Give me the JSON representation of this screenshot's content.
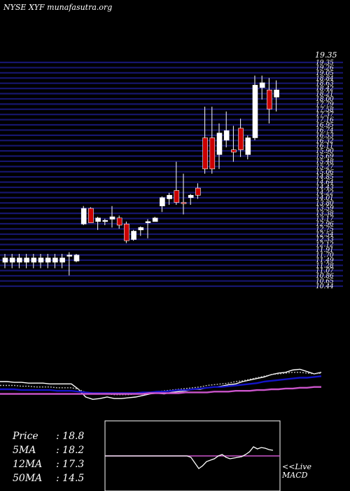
{
  "header": {
    "title": "NYSE XYF munafasutra.org"
  },
  "chart_data": {
    "type": "candlestick",
    "price_axis": {
      "ylim": [
        10.0,
        19.35
      ],
      "top_label": "19.35",
      "tick_labels": [
        "19.35",
        "19.26",
        "19.05",
        "18.84",
        "18.63",
        "18.42",
        "18.21",
        "18.00",
        "17.79",
        "17.58",
        "17.37",
        "17.16",
        "16.95",
        "16.74",
        "16.53",
        "16.32",
        "16.11",
        "15.90",
        "15.69",
        "15.48",
        "15.27",
        "15.06",
        "14.85",
        "14.64",
        "14.43",
        "14.22",
        "14.01",
        "13.80",
        "13.59",
        "13.38",
        "13.17",
        "12.96",
        "12.75",
        "12.54",
        "12.33",
        "12.12",
        "11.91",
        "11.70",
        "11.49",
        "11.28",
        "11.07",
        "10.86",
        "10.65",
        "10.44"
      ],
      "grid": true
    },
    "candles": [
      {
        "o": 11.0,
        "h": 11.35,
        "l": 10.75,
        "c": 11.18,
        "color": "white"
      },
      {
        "o": 11.0,
        "h": 11.35,
        "l": 10.75,
        "c": 11.18,
        "color": "white"
      },
      {
        "o": 11.0,
        "h": 11.35,
        "l": 10.75,
        "c": 11.18,
        "color": "white"
      },
      {
        "o": 11.0,
        "h": 11.35,
        "l": 10.75,
        "c": 11.18,
        "color": "white"
      },
      {
        "o": 11.0,
        "h": 11.35,
        "l": 10.75,
        "c": 11.18,
        "color": "white"
      },
      {
        "o": 11.0,
        "h": 11.35,
        "l": 10.75,
        "c": 11.18,
        "color": "white"
      },
      {
        "o": 11.0,
        "h": 11.35,
        "l": 10.75,
        "c": 11.18,
        "color": "white"
      },
      {
        "o": 11.0,
        "h": 11.35,
        "l": 10.75,
        "c": 11.18,
        "color": "white"
      },
      {
        "o": 11.0,
        "h": 11.35,
        "l": 10.75,
        "c": 11.18,
        "color": "white"
      },
      {
        "o": 11.25,
        "h": 11.42,
        "l": 10.45,
        "c": 11.3,
        "color": "white"
      },
      {
        "o": 11.05,
        "h": 11.35,
        "l": 11.0,
        "c": 11.3,
        "color": "white"
      },
      {
        "o": 12.6,
        "h": 13.35,
        "l": 12.55,
        "c": 13.25,
        "color": "white"
      },
      {
        "o": 13.25,
        "h": 13.3,
        "l": 12.65,
        "c": 12.65,
        "color": "red"
      },
      {
        "o": 12.7,
        "h": 12.9,
        "l": 12.35,
        "c": 12.85,
        "color": "white"
      },
      {
        "o": 12.7,
        "h": 12.82,
        "l": 12.55,
        "c": 12.75,
        "color": "white"
      },
      {
        "o": 12.8,
        "h": 13.35,
        "l": 12.45,
        "c": 12.9,
        "color": "white"
      },
      {
        "o": 12.85,
        "h": 12.95,
        "l": 12.4,
        "c": 12.55,
        "color": "red"
      },
      {
        "o": 12.6,
        "h": 12.7,
        "l": 11.8,
        "c": 11.9,
        "color": "red"
      },
      {
        "o": 11.95,
        "h": 12.35,
        "l": 11.9,
        "c": 12.3,
        "color": "white"
      },
      {
        "o": 12.35,
        "h": 12.5,
        "l": 12.1,
        "c": 12.45,
        "color": "white"
      },
      {
        "o": 12.65,
        "h": 12.8,
        "l": 12.0,
        "c": 12.7,
        "color": "white"
      },
      {
        "o": 12.7,
        "h": 12.9,
        "l": 12.7,
        "c": 12.85,
        "color": "white"
      },
      {
        "o": 13.35,
        "h": 13.75,
        "l": 13.1,
        "c": 13.7,
        "color": "white"
      },
      {
        "o": 13.65,
        "h": 13.9,
        "l": 13.4,
        "c": 13.8,
        "color": "white"
      },
      {
        "o": 14.0,
        "h": 15.2,
        "l": 13.4,
        "c": 13.5,
        "color": "red"
      },
      {
        "o": 13.45,
        "h": 14.7,
        "l": 13.0,
        "c": 13.5,
        "color": "red"
      },
      {
        "o": 13.7,
        "h": 13.85,
        "l": 13.4,
        "c": 13.8,
        "color": "white"
      },
      {
        "o": 14.1,
        "h": 14.3,
        "l": 13.65,
        "c": 13.8,
        "color": "red"
      },
      {
        "o": 16.2,
        "h": 17.5,
        "l": 14.7,
        "c": 14.9,
        "color": "red"
      },
      {
        "o": 16.2,
        "h": 17.5,
        "l": 14.7,
        "c": 14.9,
        "color": "red"
      },
      {
        "o": 15.5,
        "h": 16.8,
        "l": 14.9,
        "c": 16.4,
        "color": "white"
      },
      {
        "o": 16.1,
        "h": 17.3,
        "l": 15.8,
        "c": 16.5,
        "color": "white"
      },
      {
        "o": 15.6,
        "h": 16.7,
        "l": 15.2,
        "c": 15.7,
        "color": "red"
      },
      {
        "o": 16.6,
        "h": 17.0,
        "l": 15.4,
        "c": 15.7,
        "color": "red"
      },
      {
        "o": 15.5,
        "h": 16.3,
        "l": 15.3,
        "c": 16.2,
        "color": "white"
      },
      {
        "o": 16.2,
        "h": 18.8,
        "l": 16.1,
        "c": 18.4,
        "color": "white"
      },
      {
        "o": 18.3,
        "h": 18.8,
        "l": 17.8,
        "c": 18.5,
        "color": "white"
      },
      {
        "o": 18.2,
        "h": 18.7,
        "l": 16.8,
        "c": 17.4,
        "color": "red"
      },
      {
        "o": 17.9,
        "h": 18.6,
        "l": 17.3,
        "c": 18.2,
        "color": "white"
      }
    ],
    "ma_lines": [
      {
        "color": "#ffffff",
        "values": [
          60,
          60,
          59,
          59,
          58,
          58,
          58,
          57,
          57,
          57,
          57,
          50,
          40,
          37,
          38,
          40,
          38,
          38,
          39,
          40,
          42,
          44,
          45,
          44,
          46,
          47,
          48,
          50,
          50,
          52,
          53,
          54,
          56,
          57,
          60,
          62,
          64,
          66,
          69,
          71,
          72,
          75,
          76,
          73,
          70,
          72
        ]
      },
      {
        "color": "#bbbbbb",
        "values": [
          55,
          55,
          55,
          54,
          54,
          53,
          53,
          53,
          52,
          52,
          52,
          50,
          46,
          44,
          44,
          44,
          43,
          43,
          43,
          44,
          45,
          46,
          47,
          48,
          49,
          50,
          51,
          52,
          53,
          55,
          56,
          57,
          58,
          60,
          61,
          63,
          65,
          67,
          69,
          70,
          71,
          72,
          72,
          71,
          70,
          71
        ]
      },
      {
        "color": "#1414c8",
        "values": [
          50,
          50,
          50,
          49,
          49,
          49,
          49,
          49,
          48,
          48,
          48,
          47,
          46,
          45,
          45,
          45,
          45,
          45,
          45,
          45,
          46,
          46,
          47,
          47,
          48,
          49,
          49,
          50,
          51,
          52,
          53,
          53,
          54,
          55,
          56,
          57,
          58,
          60,
          61,
          62,
          63,
          64,
          65,
          65,
          66,
          67
        ]
      },
      {
        "color": "#cc55cc",
        "values": [
          44,
          44,
          44,
          44,
          44,
          44,
          44,
          44,
          44,
          44,
          44,
          44,
          44,
          44,
          44,
          44,
          44,
          44,
          44,
          44,
          44,
          45,
          45,
          45,
          45,
          45,
          46,
          46,
          46,
          46,
          47,
          47,
          47,
          48,
          48,
          48,
          49,
          49,
          50,
          50,
          51,
          51,
          52,
          52,
          53,
          53
        ]
      }
    ],
    "macd_line": [
      50,
      50,
      50,
      50,
      50,
      50,
      50,
      50,
      50,
      50,
      50,
      50,
      50,
      50,
      50,
      50,
      50,
      50,
      50,
      50,
      50,
      50,
      48,
      40,
      32,
      36,
      42,
      44,
      46,
      50,
      52,
      48,
      46,
      47,
      48,
      49,
      52,
      56,
      63,
      60,
      62,
      61,
      59,
      58
    ],
    "stats": [
      {
        "label": "Price",
        "value": ": 18.8"
      },
      {
        "label": "5MA",
        "value": ": 18.2"
      },
      {
        "label": "12MA",
        "value": ": 17.3"
      },
      {
        "label": "50MA",
        "value": ": 14.5"
      }
    ],
    "live_label": "<<Live",
    "macd_label": "MACD",
    "colors": {
      "grid": "#16166e",
      "bull": "#ffffff",
      "bear": "#cc0000",
      "macd_box": "#ffffff",
      "zero_line": "#cc55cc"
    }
  }
}
